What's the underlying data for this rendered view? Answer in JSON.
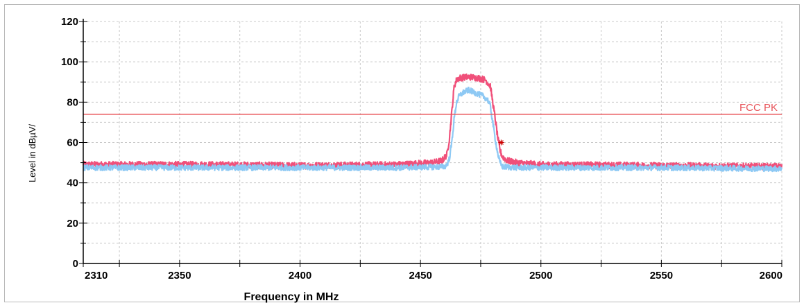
{
  "chart_data": {
    "type": "line",
    "xlabel": "Frequency in MHz",
    "ylabel": "Level in dBµV/",
    "xlim": [
      2310,
      2600
    ],
    "ylim": [
      0,
      120
    ],
    "x_ticks": [
      2310,
      2350,
      2400,
      2450,
      2500,
      2550,
      2600
    ],
    "x_minor_ticks": [
      2325,
      2375,
      2425,
      2475,
      2525,
      2575
    ],
    "y_ticks": [
      0,
      20,
      40,
      60,
      80,
      100,
      120
    ],
    "grid": true,
    "limit_line": {
      "name": "FCC PK",
      "value": 74,
      "color": "#e8545a"
    },
    "marker": {
      "x": 2483.5,
      "y": 60,
      "color": "#cc0000"
    },
    "series": [
      {
        "color": "#f0507a",
        "noise": 1.6,
        "points": [
          [
            2310,
            49
          ],
          [
            2360,
            49
          ],
          [
            2400,
            48.5
          ],
          [
            2440,
            49
          ],
          [
            2455,
            50
          ],
          [
            2459,
            51
          ],
          [
            2461,
            54
          ],
          [
            2462,
            62
          ],
          [
            2463,
            75
          ],
          [
            2464,
            88
          ],
          [
            2465,
            91
          ],
          [
            2466,
            92
          ],
          [
            2470,
            92.5
          ],
          [
            2474,
            92
          ],
          [
            2477,
            91
          ],
          [
            2479,
            88
          ],
          [
            2480,
            80
          ],
          [
            2481,
            72
          ],
          [
            2482,
            63
          ],
          [
            2483,
            56
          ],
          [
            2484,
            53
          ],
          [
            2486,
            51
          ],
          [
            2490,
            50
          ],
          [
            2500,
            49
          ],
          [
            2550,
            48.5
          ],
          [
            2600,
            48
          ]
        ]
      },
      {
        "color": "#8ec9f4",
        "noise": 1.4,
        "points": [
          [
            2310,
            47.5
          ],
          [
            2360,
            47.5
          ],
          [
            2400,
            47.5
          ],
          [
            2440,
            47.5
          ],
          [
            2460,
            48
          ],
          [
            2461,
            49
          ],
          [
            2462,
            52
          ],
          [
            2463,
            60
          ],
          [
            2464,
            72
          ],
          [
            2465,
            80
          ],
          [
            2466,
            83
          ],
          [
            2468,
            85
          ],
          [
            2470,
            86
          ],
          [
            2472,
            85
          ],
          [
            2476,
            83
          ],
          [
            2478,
            81
          ],
          [
            2479,
            78
          ],
          [
            2480,
            70
          ],
          [
            2481,
            62
          ],
          [
            2482,
            55
          ],
          [
            2483,
            50
          ],
          [
            2484,
            48
          ],
          [
            2490,
            47.5
          ],
          [
            2550,
            47.5
          ],
          [
            2600,
            47
          ]
        ]
      }
    ]
  }
}
